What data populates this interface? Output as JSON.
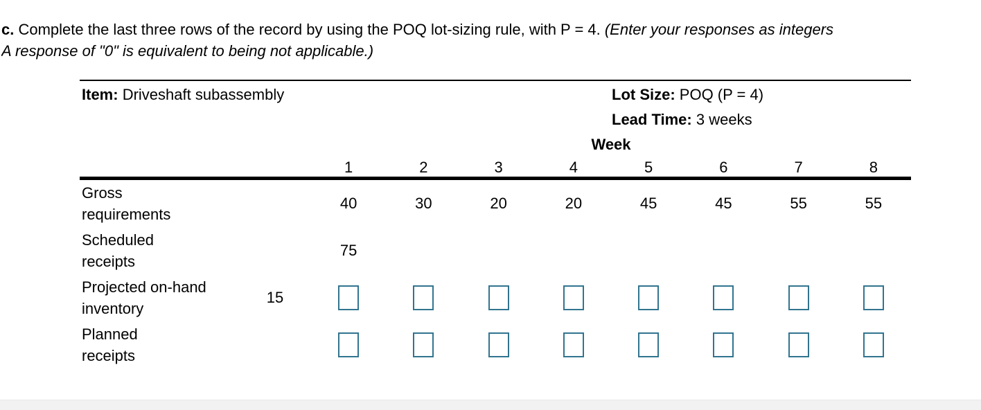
{
  "question": {
    "label": "c.",
    "text_main": " Complete the last three rows of the record by using the POQ lot-sizing rule, with P = 4. ",
    "italic_line1": "(Enter your responses as integers",
    "italic_line2": "A response of \"0\" is equivalent to being not applicable.)"
  },
  "record": {
    "item_label": "Item:",
    "item_value": "Driveshaft subassembly",
    "lot_size_label": "Lot Size:",
    "lot_size_value": "POQ (P = 4)",
    "lead_time_label": "Lead Time:",
    "lead_time_value": "3 weeks",
    "week_header": "Week",
    "week_numbers": [
      "1",
      "2",
      "3",
      "4",
      "5",
      "6",
      "7",
      "8"
    ],
    "rows": [
      {
        "label_line1": "Gross",
        "label_line2": "requirements",
        "initial": "",
        "values": [
          "40",
          "30",
          "20",
          "20",
          "45",
          "45",
          "55",
          "55"
        ]
      },
      {
        "label_line1": "Scheduled",
        "label_line2": "receipts",
        "initial": "",
        "values": [
          "75",
          "",
          "",
          "",
          "",
          "",
          "",
          ""
        ]
      },
      {
        "label_line1": "Projected on-hand",
        "label_line2": "inventory",
        "initial": "15"
      },
      {
        "label_line1": "Planned",
        "label_line2": "receipts",
        "initial": ""
      }
    ]
  },
  "colors": {
    "input_border": "#31748F",
    "footer_bar": "#F2F2F2",
    "text": "#000000"
  }
}
